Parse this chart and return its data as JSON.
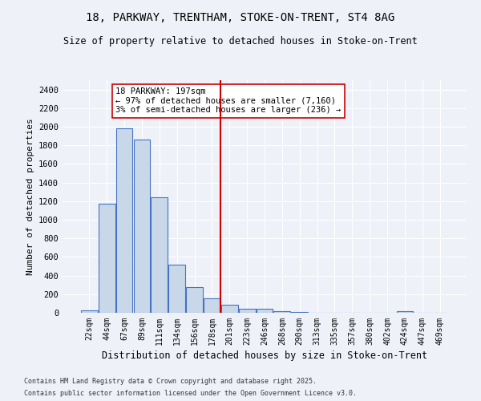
{
  "title1": "18, PARKWAY, TRENTHAM, STOKE-ON-TRENT, ST4 8AG",
  "title2": "Size of property relative to detached houses in Stoke-on-Trent",
  "xlabel": "Distribution of detached houses by size in Stoke-on-Trent",
  "ylabel": "Number of detached properties",
  "footer1": "Contains HM Land Registry data © Crown copyright and database right 2025.",
  "footer2": "Contains public sector information licensed under the Open Government Licence v3.0.",
  "bin_labels": [
    "22sqm",
    "44sqm",
    "67sqm",
    "89sqm",
    "111sqm",
    "134sqm",
    "156sqm",
    "178sqm",
    "201sqm",
    "223sqm",
    "246sqm",
    "268sqm",
    "290sqm",
    "313sqm",
    "335sqm",
    "357sqm",
    "380sqm",
    "402sqm",
    "424sqm",
    "447sqm",
    "469sqm"
  ],
  "bin_values": [
    25,
    1170,
    1980,
    1860,
    1240,
    520,
    275,
    155,
    90,
    45,
    40,
    20,
    5,
    0,
    0,
    0,
    0,
    0,
    20,
    0,
    0
  ],
  "bar_color": "#c8d8e8",
  "bar_edge_color": "#4472c4",
  "red_line_x": 8,
  "annotation_text": "18 PARKWAY: 197sqm\n← 97% of detached houses are smaller (7,160)\n3% of semi-detached houses are larger (236) →",
  "annotation_fontsize": 7.5,
  "ylim": [
    0,
    2500
  ],
  "yticks": [
    0,
    200,
    400,
    600,
    800,
    1000,
    1200,
    1400,
    1600,
    1800,
    2000,
    2200,
    2400
  ],
  "bg_color": "#eef2f8",
  "grid_color": "#ffffff",
  "vline_color": "#cc0000",
  "annotation_box_color": "#ffffff",
  "annotation_box_edge": "#cc0000"
}
